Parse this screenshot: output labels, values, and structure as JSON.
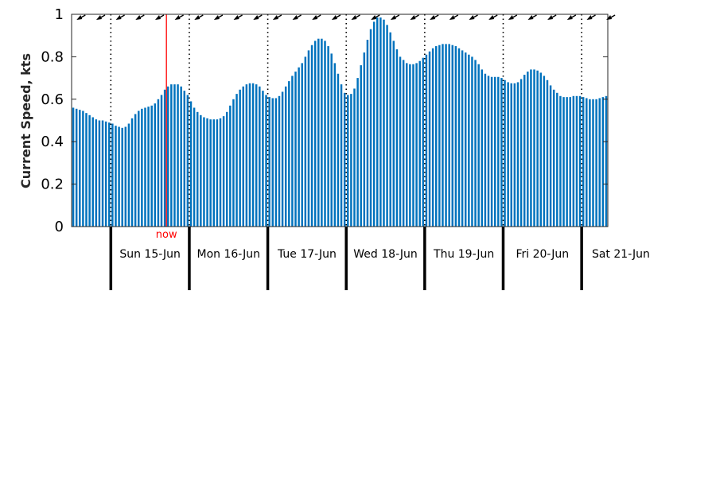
{
  "chart_data": {
    "type": "bar",
    "title": "",
    "ylabel": "Current Speed, kts",
    "xlabel": "",
    "ylim": [
      0,
      1
    ],
    "yticks": [
      0,
      0.2,
      0.4,
      0.6,
      0.8,
      1
    ],
    "ytick_labels": [
      "0",
      "0.2",
      "0.4",
      "0.6",
      "0.8",
      "1"
    ],
    "grid": false,
    "bar_color": "#0072bd",
    "axis_color": "#262626",
    "days": [
      "Sun 15-Jun",
      "Mon 16-Jun",
      "Tue 17-Jun",
      "Wed 18-Jun",
      "Thu 19-Jun",
      "Fri 20-Jun",
      "Sat 21-Jun"
    ],
    "time_start_hours_before_first_midnight": 12,
    "hours_per_bar": 1,
    "hours_per_day": 24,
    "day_label_offset_hours": 12,
    "now": {
      "label": "now",
      "hours_after_first_midnight": 17,
      "color": "#ff0000"
    },
    "values": [
      0.56,
      0.555,
      0.55,
      0.545,
      0.535,
      0.525,
      0.515,
      0.505,
      0.5,
      0.5,
      0.495,
      0.49,
      0.485,
      0.475,
      0.47,
      0.465,
      0.47,
      0.485,
      0.51,
      0.53,
      0.545,
      0.555,
      0.56,
      0.565,
      0.57,
      0.58,
      0.6,
      0.62,
      0.645,
      0.66,
      0.67,
      0.67,
      0.67,
      0.66,
      0.64,
      0.62,
      0.59,
      0.56,
      0.54,
      0.525,
      0.515,
      0.51,
      0.505,
      0.505,
      0.505,
      0.51,
      0.52,
      0.54,
      0.57,
      0.6,
      0.625,
      0.645,
      0.66,
      0.67,
      0.675,
      0.675,
      0.67,
      0.66,
      0.64,
      0.62,
      0.61,
      0.605,
      0.605,
      0.615,
      0.635,
      0.66,
      0.685,
      0.71,
      0.73,
      0.75,
      0.77,
      0.8,
      0.83,
      0.855,
      0.875,
      0.885,
      0.885,
      0.875,
      0.85,
      0.815,
      0.77,
      0.72,
      0.67,
      0.63,
      0.62,
      0.625,
      0.65,
      0.7,
      0.76,
      0.82,
      0.88,
      0.93,
      0.965,
      0.985,
      0.985,
      0.975,
      0.95,
      0.915,
      0.875,
      0.835,
      0.8,
      0.785,
      0.77,
      0.765,
      0.765,
      0.77,
      0.78,
      0.795,
      0.81,
      0.825,
      0.84,
      0.85,
      0.855,
      0.86,
      0.86,
      0.86,
      0.855,
      0.85,
      0.84,
      0.83,
      0.82,
      0.81,
      0.8,
      0.785,
      0.765,
      0.74,
      0.72,
      0.71,
      0.705,
      0.705,
      0.705,
      0.7,
      0.69,
      0.68,
      0.675,
      0.675,
      0.68,
      0.695,
      0.715,
      0.73,
      0.74,
      0.74,
      0.735,
      0.725,
      0.71,
      0.69,
      0.665,
      0.645,
      0.63,
      0.615,
      0.61,
      0.61,
      0.61,
      0.615,
      0.615,
      0.615,
      0.61,
      0.605,
      0.6,
      0.6,
      0.6,
      0.605,
      0.61,
      0.615
    ],
    "arrow_direction_label": "current direction (toward lower-left)",
    "arrow_every_n_bars": 6
  }
}
